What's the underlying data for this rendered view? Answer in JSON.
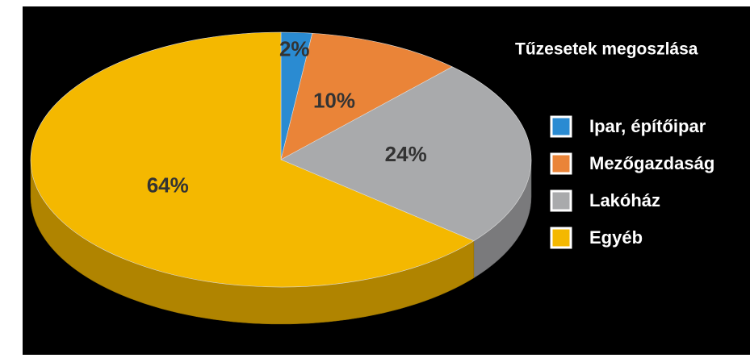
{
  "chart_data": {
    "type": "pie",
    "title": "Tűzesetek megoszlása",
    "categories": [
      "Ipar, építőipar",
      "Mezőgazdaság",
      "Lakóház",
      "Egyéb"
    ],
    "values": [
      2,
      10,
      24,
      64
    ],
    "value_labels": [
      "2%",
      "10%",
      "24%",
      "64%"
    ],
    "colors": [
      "#2a8bd2",
      "#ea8438",
      "#a9aaac",
      "#f4b800"
    ],
    "legend": "right"
  }
}
